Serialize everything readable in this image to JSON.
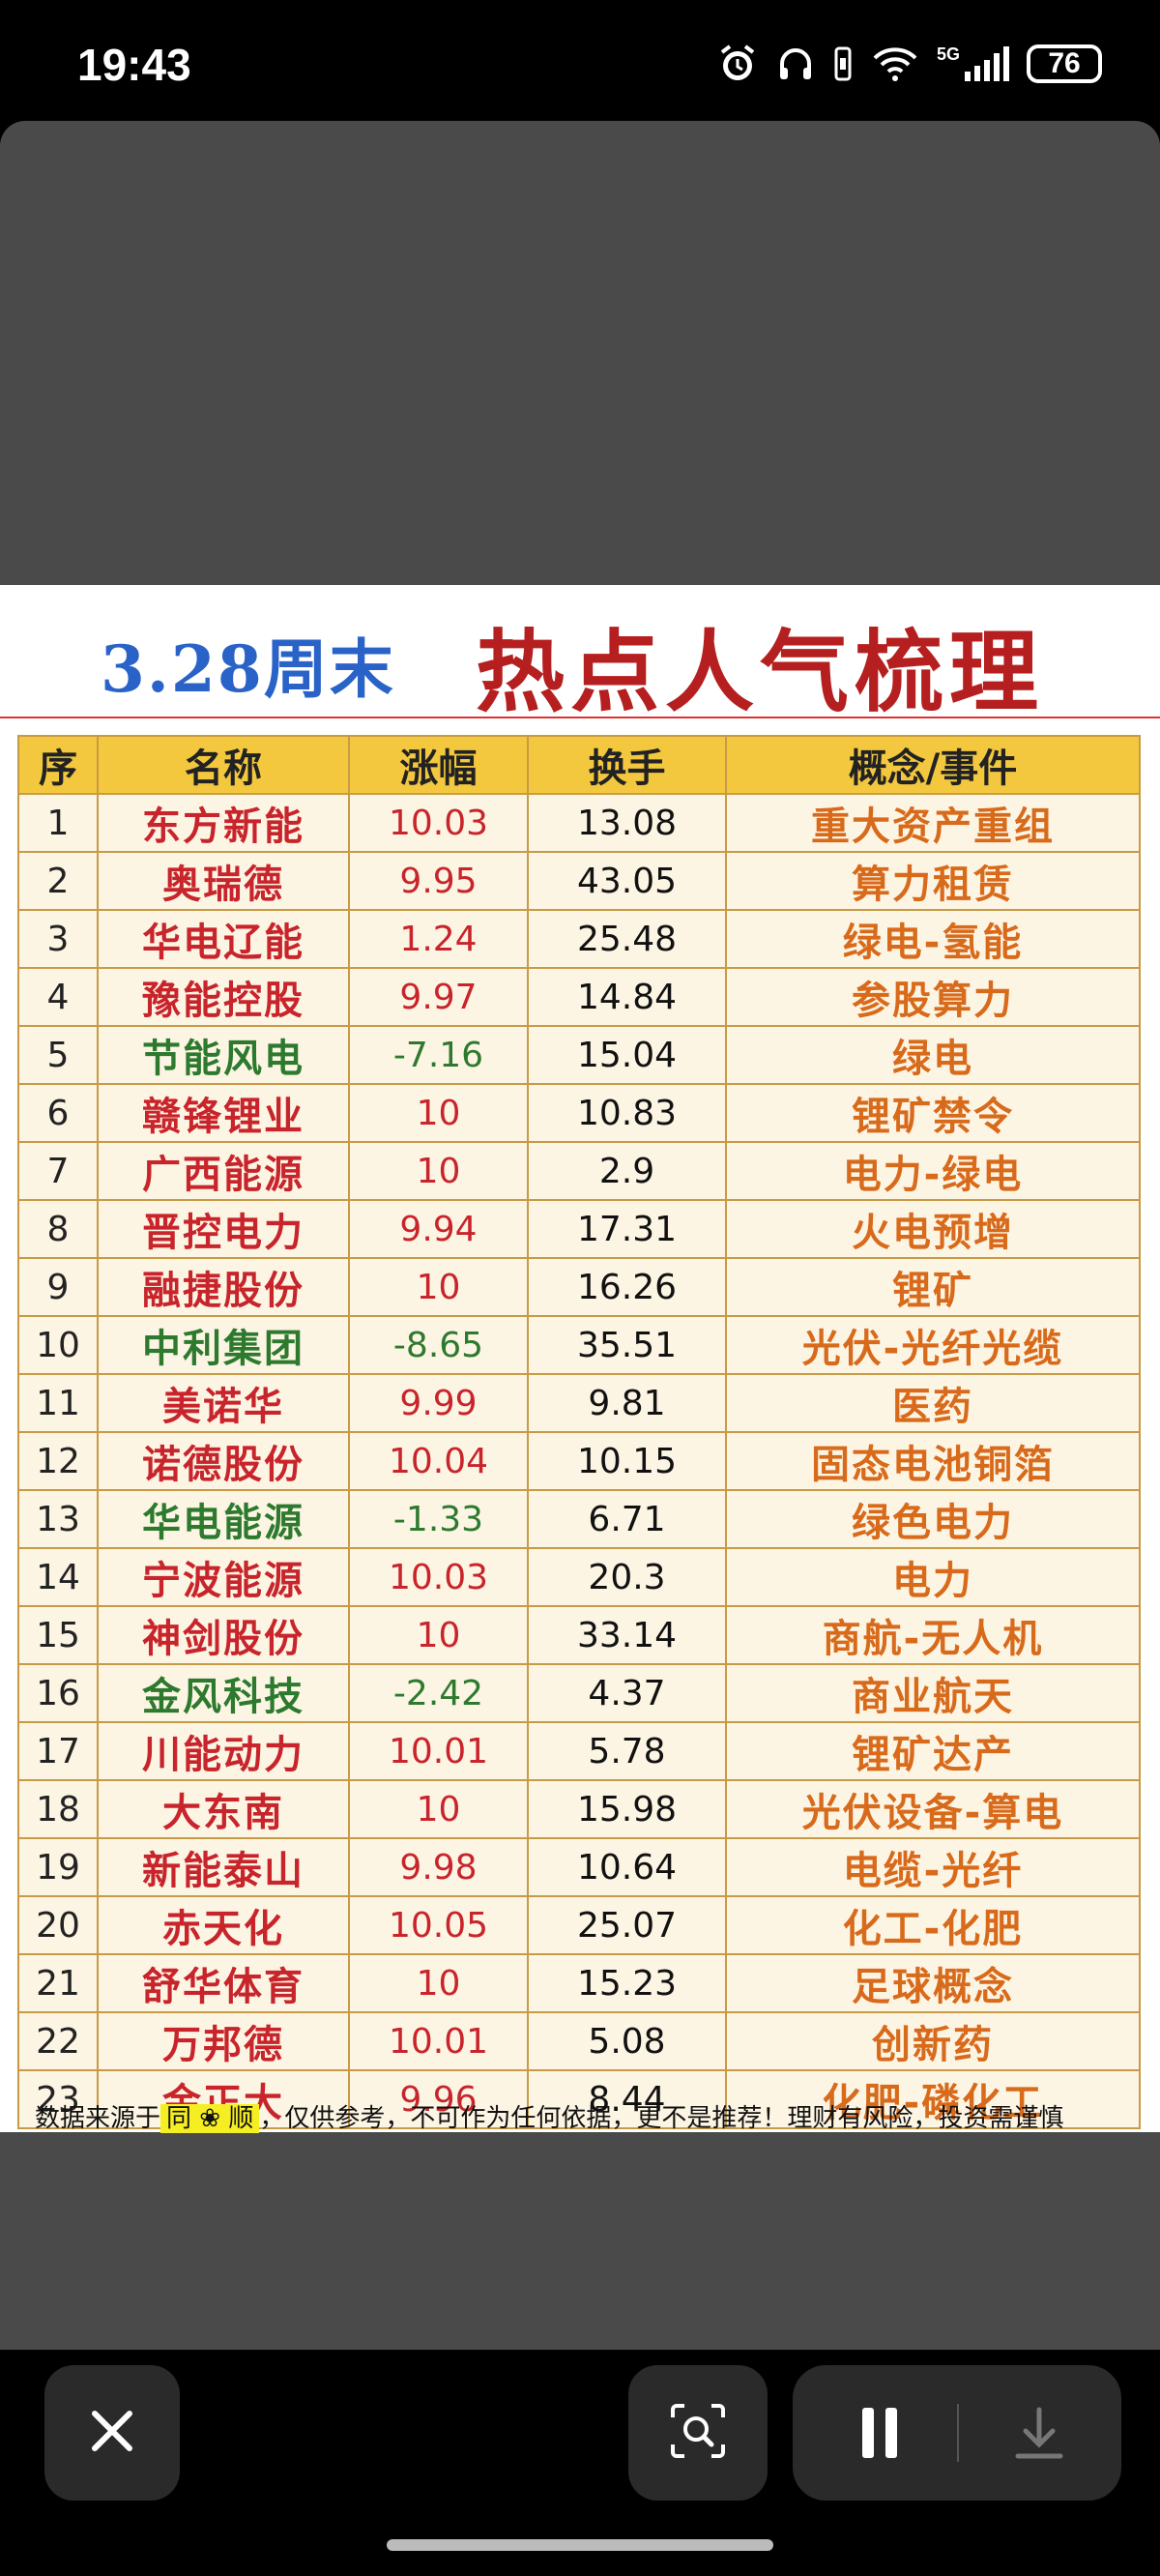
{
  "status_bar": {
    "time": "19:43",
    "network": "5G",
    "battery": "76",
    "icons": [
      "alarm-icon",
      "headphones-icon",
      "vibrate-icon",
      "wifi-icon",
      "signal-icon",
      "battery-icon"
    ]
  },
  "image": {
    "title_date": "3.28周末",
    "title_main": "热点人气梳理",
    "headers": [
      "序",
      "名称",
      "涨幅",
      "换手",
      "概念/事件"
    ],
    "rows": [
      {
        "idx": "1",
        "name": "东方新能",
        "chg": "10.03",
        "turn": "13.08",
        "concept": "重大资产重组",
        "dir": "up"
      },
      {
        "idx": "2",
        "name": "奥瑞德",
        "chg": "9.95",
        "turn": "43.05",
        "concept": "算力租赁",
        "dir": "up"
      },
      {
        "idx": "3",
        "name": "华电辽能",
        "chg": "1.24",
        "turn": "25.48",
        "concept": "绿电-氢能",
        "dir": "up"
      },
      {
        "idx": "4",
        "name": "豫能控股",
        "chg": "9.97",
        "turn": "14.84",
        "concept": "参股算力",
        "dir": "up"
      },
      {
        "idx": "5",
        "name": "节能风电",
        "chg": "-7.16",
        "turn": "15.04",
        "concept": "绿电",
        "dir": "down"
      },
      {
        "idx": "6",
        "name": "赣锋锂业",
        "chg": "10",
        "turn": "10.83",
        "concept": "锂矿禁令",
        "dir": "up"
      },
      {
        "idx": "7",
        "name": "广西能源",
        "chg": "10",
        "turn": "2.9",
        "concept": "电力-绿电",
        "dir": "up"
      },
      {
        "idx": "8",
        "name": "晋控电力",
        "chg": "9.94",
        "turn": "17.31",
        "concept": "火电预增",
        "dir": "up"
      },
      {
        "idx": "9",
        "name": "融捷股份",
        "chg": "10",
        "turn": "16.26",
        "concept": "锂矿",
        "dir": "up"
      },
      {
        "idx": "10",
        "name": "中利集团",
        "chg": "-8.65",
        "turn": "35.51",
        "concept": "光伏-光纤光缆",
        "dir": "down"
      },
      {
        "idx": "11",
        "name": "美诺华",
        "chg": "9.99",
        "turn": "9.81",
        "concept": "医药",
        "dir": "up"
      },
      {
        "idx": "12",
        "name": "诺德股份",
        "chg": "10.04",
        "turn": "10.15",
        "concept": "固态电池铜箔",
        "dir": "up"
      },
      {
        "idx": "13",
        "name": "华电能源",
        "chg": "-1.33",
        "turn": "6.71",
        "concept": "绿色电力",
        "dir": "down"
      },
      {
        "idx": "14",
        "name": "宁波能源",
        "chg": "10.03",
        "turn": "20.3",
        "concept": "电力",
        "dir": "up"
      },
      {
        "idx": "15",
        "name": "神剑股份",
        "chg": "10",
        "turn": "33.14",
        "concept": "商航-无人机",
        "dir": "up"
      },
      {
        "idx": "16",
        "name": "金风科技",
        "chg": "-2.42",
        "turn": "4.37",
        "concept": "商业航天",
        "dir": "down"
      },
      {
        "idx": "17",
        "name": "川能动力",
        "chg": "10.01",
        "turn": "5.78",
        "concept": "锂矿达产",
        "dir": "up"
      },
      {
        "idx": "18",
        "name": "大东南",
        "chg": "10",
        "turn": "15.98",
        "concept": "光伏设备-算电",
        "dir": "up"
      },
      {
        "idx": "19",
        "name": "新能泰山",
        "chg": "9.98",
        "turn": "10.64",
        "concept": "电缆-光纤",
        "dir": "up"
      },
      {
        "idx": "20",
        "name": "赤天化",
        "chg": "10.05",
        "turn": "25.07",
        "concept": "化工-化肥",
        "dir": "up"
      },
      {
        "idx": "21",
        "name": "舒华体育",
        "chg": "10",
        "turn": "15.23",
        "concept": "足球概念",
        "dir": "up"
      },
      {
        "idx": "22",
        "name": "万邦德",
        "chg": "10.01",
        "turn": "5.08",
        "concept": "创新药",
        "dir": "up"
      },
      {
        "idx": "23",
        "name": "金正大",
        "chg": "9.96",
        "turn": "8.44",
        "concept": "化肥-磷化工",
        "dir": "up"
      }
    ],
    "footnote_pre": "数据来源于",
    "footnote_source": "同 ❀ 顺",
    "footnote_post": "，仅供参考，不可作为任何依据，更不是推荐！理财有风险，投资需谨慎"
  },
  "controls": {
    "close_icon": "close-icon",
    "lens_icon": "lens-search-icon",
    "pause_icon": "pause-icon",
    "download_icon": "download-icon"
  },
  "colors": {
    "up": "#c8242b",
    "down": "#2d7a2f",
    "header": "#f3c83e",
    "concept": "#d86a1b",
    "title_date": "#2a63c8",
    "title_main": "#b51f1f"
  }
}
